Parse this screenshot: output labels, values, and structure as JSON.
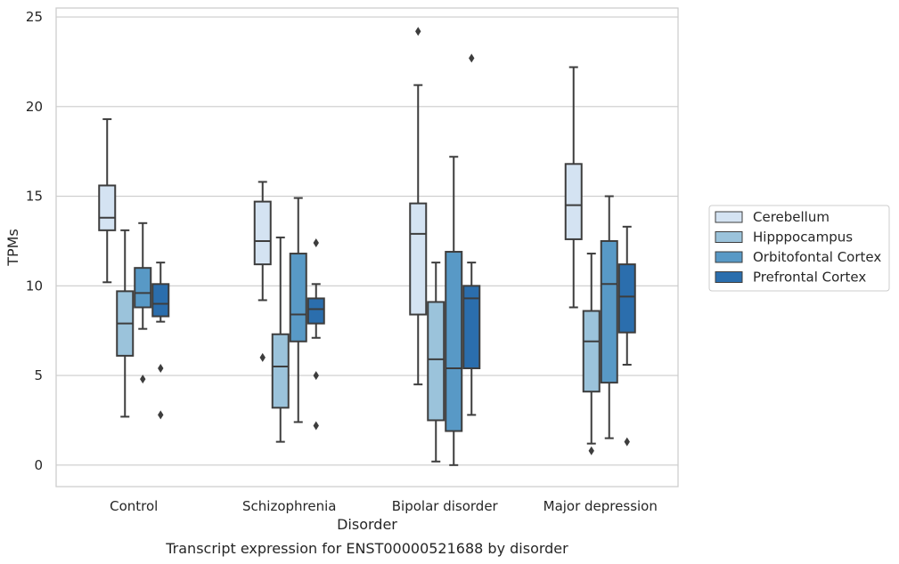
{
  "caption": "Transcript expression for ENST00000521688 by disorder",
  "chart_data": {
    "type": "boxplot",
    "xlabel": "Disorder",
    "ylabel": "TPMs",
    "ylim": [
      -1.2,
      25.5
    ],
    "yticks": [
      0,
      5,
      10,
      15,
      20,
      25
    ],
    "grid": "horizontal",
    "legend_position": "right",
    "categories": [
      "Control",
      "Schizophrenia",
      "Bipolar disorder",
      "Major depression"
    ],
    "series": [
      {
        "name": "Cerebellum",
        "color": "#d4e3f2",
        "boxes": [
          {
            "whisker_low": 10.2,
            "q1": 13.1,
            "median": 13.8,
            "q3": 15.6,
            "whisker_high": 19.3,
            "outliers": []
          },
          {
            "whisker_low": 9.2,
            "q1": 11.2,
            "median": 12.5,
            "q3": 14.7,
            "whisker_high": 15.8,
            "outliers": [
              6.0
            ]
          },
          {
            "whisker_low": 4.5,
            "q1": 8.4,
            "median": 12.9,
            "q3": 14.6,
            "whisker_high": 21.2,
            "outliers": [
              24.2
            ]
          },
          {
            "whisker_low": 8.8,
            "q1": 12.6,
            "median": 14.5,
            "q3": 16.8,
            "whisker_high": 22.2,
            "outliers": []
          }
        ]
      },
      {
        "name": "Hipppocampus",
        "color": "#9bc3db",
        "boxes": [
          {
            "whisker_low": 2.7,
            "q1": 6.1,
            "median": 7.9,
            "q3": 9.7,
            "whisker_high": 13.1,
            "outliers": []
          },
          {
            "whisker_low": 1.3,
            "q1": 3.2,
            "median": 5.5,
            "q3": 7.3,
            "whisker_high": 12.7,
            "outliers": []
          },
          {
            "whisker_low": 0.2,
            "q1": 2.5,
            "median": 5.9,
            "q3": 9.1,
            "whisker_high": 11.3,
            "outliers": []
          },
          {
            "whisker_low": 1.2,
            "q1": 4.1,
            "median": 6.9,
            "q3": 8.6,
            "whisker_high": 11.8,
            "outliers": [
              0.8
            ]
          }
        ]
      },
      {
        "name": "Orbitofontal Cortex",
        "color": "#5899c6",
        "boxes": [
          {
            "whisker_low": 7.6,
            "q1": 8.8,
            "median": 9.6,
            "q3": 11.0,
            "whisker_high": 13.5,
            "outliers": [
              4.8
            ]
          },
          {
            "whisker_low": 2.4,
            "q1": 6.9,
            "median": 8.4,
            "q3": 11.8,
            "whisker_high": 14.9,
            "outliers": []
          },
          {
            "whisker_low": 0.0,
            "q1": 1.9,
            "median": 5.4,
            "q3": 11.9,
            "whisker_high": 17.2,
            "outliers": []
          },
          {
            "whisker_low": 1.5,
            "q1": 4.6,
            "median": 10.1,
            "q3": 12.5,
            "whisker_high": 15.0,
            "outliers": []
          }
        ]
      },
      {
        "name": "Prefrontal Cortex",
        "color": "#2b6ead",
        "boxes": [
          {
            "whisker_low": 8.0,
            "q1": 8.3,
            "median": 9.0,
            "q3": 10.1,
            "whisker_high": 11.3,
            "outliers": [
              5.4,
              2.8
            ]
          },
          {
            "whisker_low": 7.1,
            "q1": 7.9,
            "median": 8.7,
            "q3": 9.3,
            "whisker_high": 10.1,
            "outliers": [
              12.4,
              5.0,
              2.2
            ]
          },
          {
            "whisker_low": 2.8,
            "q1": 5.4,
            "median": 9.3,
            "q3": 10.0,
            "whisker_high": 11.3,
            "outliers": [
              22.7
            ]
          },
          {
            "whisker_low": 5.6,
            "q1": 7.4,
            "median": 9.4,
            "q3": 11.2,
            "whisker_high": 13.3,
            "outliers": [
              1.3
            ]
          }
        ]
      }
    ]
  }
}
